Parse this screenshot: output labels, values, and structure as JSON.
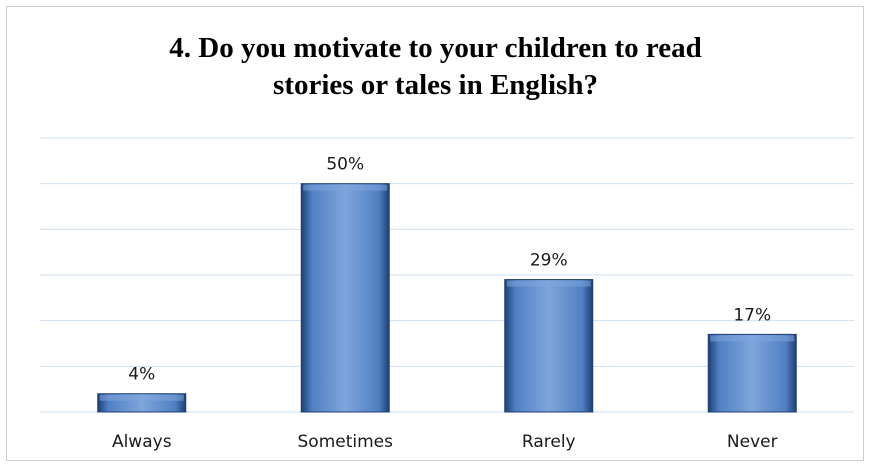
{
  "chart_data": {
    "type": "bar",
    "title_lines": [
      "4. Do you motivate to your children  to read",
      "stories or tales in English?"
    ],
    "categories": [
      "Always",
      "Sometimes",
      "Rarely",
      "Never"
    ],
    "values": [
      4,
      50,
      29,
      17
    ],
    "value_labels": [
      "4%",
      "50%",
      "29%",
      "17%"
    ],
    "ylim": [
      0,
      60
    ],
    "grid": true,
    "legend": "none",
    "colors": {
      "bar_light": "#7fa6dc",
      "bar_main": "#4f7fc3",
      "bar_dark": "#1f3f73",
      "gridline": "#cfe0f1"
    }
  }
}
